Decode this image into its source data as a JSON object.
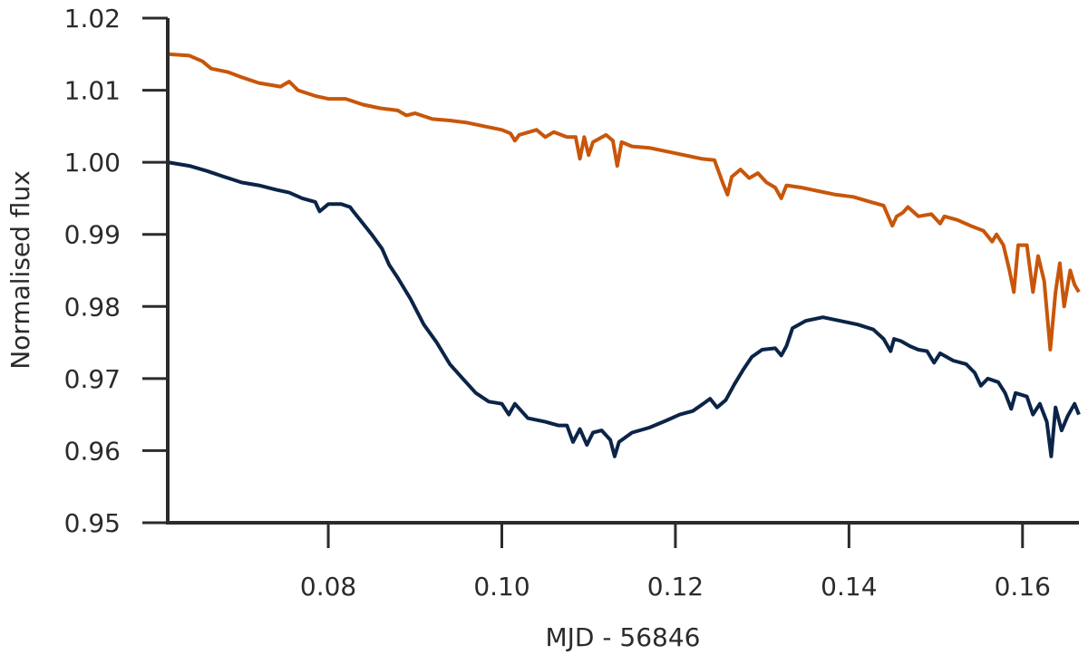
{
  "chart_data": {
    "type": "line",
    "title": "",
    "xlabel": "MJD - 56846",
    "ylabel": "Normalised flux",
    "xlim": [
      0.0615,
      0.1665
    ],
    "ylim": [
      0.95,
      1.02
    ],
    "xticks": [
      "0.08",
      "0.10",
      "0.12",
      "0.14",
      "0.16"
    ],
    "yticks": [
      "0.95",
      "0.96",
      "0.97",
      "0.98",
      "0.99",
      "1.00",
      "1.01",
      "1.02"
    ],
    "grid": false,
    "legend": "none",
    "series": [
      {
        "color": "#c8560a",
        "points": [
          [
            0.0615,
            1.015
          ],
          [
            0.064,
            1.0148
          ],
          [
            0.0655,
            1.014
          ],
          [
            0.0665,
            1.013
          ],
          [
            0.0685,
            1.0125
          ],
          [
            0.07,
            1.0118
          ],
          [
            0.072,
            1.011
          ],
          [
            0.0745,
            1.0105
          ],
          [
            0.0755,
            1.0112
          ],
          [
            0.0765,
            1.01
          ],
          [
            0.0785,
            1.0092
          ],
          [
            0.08,
            1.0088
          ],
          [
            0.082,
            1.0088
          ],
          [
            0.084,
            1.008
          ],
          [
            0.086,
            1.0075
          ],
          [
            0.088,
            1.0072
          ],
          [
            0.089,
            1.0065
          ],
          [
            0.09,
            1.0068
          ],
          [
            0.092,
            1.006
          ],
          [
            0.094,
            1.0058
          ],
          [
            0.096,
            1.0055
          ],
          [
            0.098,
            1.005
          ],
          [
            0.1,
            1.0045
          ],
          [
            0.101,
            1.004
          ],
          [
            0.1015,
            1.003
          ],
          [
            0.102,
            1.0038
          ],
          [
            0.104,
            1.0045
          ],
          [
            0.105,
            1.0035
          ],
          [
            0.106,
            1.0042
          ],
          [
            0.1075,
            1.0035
          ],
          [
            0.1085,
            1.0035
          ],
          [
            0.109,
            1.0005
          ],
          [
            0.1095,
            1.0035
          ],
          [
            0.11,
            1.001
          ],
          [
            0.1105,
            1.0028
          ],
          [
            0.112,
            1.0038
          ],
          [
            0.1128,
            1.003
          ],
          [
            0.1133,
            0.9995
          ],
          [
            0.1138,
            1.0028
          ],
          [
            0.115,
            1.0022
          ],
          [
            0.117,
            1.002
          ],
          [
            0.119,
            1.0015
          ],
          [
            0.121,
            1.001
          ],
          [
            0.123,
            1.0005
          ],
          [
            0.1245,
            1.0003
          ],
          [
            0.1255,
            0.997
          ],
          [
            0.126,
            0.9955
          ],
          [
            0.1265,
            0.998
          ],
          [
            0.1275,
            0.999
          ],
          [
            0.1285,
            0.9978
          ],
          [
            0.1295,
            0.9985
          ],
          [
            0.1305,
            0.9972
          ],
          [
            0.1315,
            0.9965
          ],
          [
            0.1322,
            0.995
          ],
          [
            0.1328,
            0.9968
          ],
          [
            0.1345,
            0.9965
          ],
          [
            0.1365,
            0.996
          ],
          [
            0.1385,
            0.9955
          ],
          [
            0.1405,
            0.9952
          ],
          [
            0.1425,
            0.9945
          ],
          [
            0.144,
            0.994
          ],
          [
            0.145,
            0.9912
          ],
          [
            0.1455,
            0.9925
          ],
          [
            0.1462,
            0.993
          ],
          [
            0.1468,
            0.9938
          ],
          [
            0.148,
            0.9925
          ],
          [
            0.1495,
            0.9928
          ],
          [
            0.1505,
            0.9915
          ],
          [
            0.151,
            0.9925
          ],
          [
            0.1525,
            0.992
          ],
          [
            0.154,
            0.9912
          ],
          [
            0.1555,
            0.9905
          ],
          [
            0.1565,
            0.989
          ],
          [
            0.157,
            0.99
          ],
          [
            0.1578,
            0.9885
          ],
          [
            0.1585,
            0.985
          ],
          [
            0.159,
            0.982
          ],
          [
            0.1595,
            0.9885
          ],
          [
            0.1605,
            0.9885
          ],
          [
            0.1612,
            0.982
          ],
          [
            0.1618,
            0.987
          ],
          [
            0.1625,
            0.9835
          ],
          [
            0.1632,
            0.974
          ],
          [
            0.1638,
            0.982
          ],
          [
            0.1643,
            0.986
          ],
          [
            0.1648,
            0.98
          ],
          [
            0.1655,
            0.985
          ],
          [
            0.166,
            0.983
          ],
          [
            0.1665,
            0.982
          ]
        ]
      },
      {
        "color": "#0b2447",
        "points": [
          [
            0.0615,
            1.0
          ],
          [
            0.064,
            0.9995
          ],
          [
            0.066,
            0.9988
          ],
          [
            0.068,
            0.998
          ],
          [
            0.07,
            0.9972
          ],
          [
            0.072,
            0.9968
          ],
          [
            0.074,
            0.9962
          ],
          [
            0.0755,
            0.9958
          ],
          [
            0.077,
            0.995
          ],
          [
            0.0785,
            0.9945
          ],
          [
            0.079,
            0.9932
          ],
          [
            0.08,
            0.9942
          ],
          [
            0.0815,
            0.9942
          ],
          [
            0.0825,
            0.9938
          ],
          [
            0.083,
            0.993
          ],
          [
            0.084,
            0.9915
          ],
          [
            0.085,
            0.99
          ],
          [
            0.0862,
            0.988
          ],
          [
            0.087,
            0.9858
          ],
          [
            0.088,
            0.984
          ],
          [
            0.0895,
            0.981
          ],
          [
            0.091,
            0.9775
          ],
          [
            0.0925,
            0.975
          ],
          [
            0.094,
            0.972
          ],
          [
            0.0955,
            0.97
          ],
          [
            0.097,
            0.968
          ],
          [
            0.0985,
            0.9668
          ],
          [
            0.1,
            0.9665
          ],
          [
            0.1008,
            0.965
          ],
          [
            0.1015,
            0.9665
          ],
          [
            0.103,
            0.9645
          ],
          [
            0.105,
            0.964
          ],
          [
            0.1065,
            0.9635
          ],
          [
            0.1075,
            0.9635
          ],
          [
            0.1082,
            0.9612
          ],
          [
            0.109,
            0.963
          ],
          [
            0.1098,
            0.9608
          ],
          [
            0.1105,
            0.9625
          ],
          [
            0.1115,
            0.9628
          ],
          [
            0.1125,
            0.9615
          ],
          [
            0.113,
            0.9592
          ],
          [
            0.1135,
            0.9612
          ],
          [
            0.115,
            0.9625
          ],
          [
            0.117,
            0.9632
          ],
          [
            0.119,
            0.9642
          ],
          [
            0.1205,
            0.965
          ],
          [
            0.122,
            0.9655
          ],
          [
            0.1232,
            0.9665
          ],
          [
            0.124,
            0.9672
          ],
          [
            0.1248,
            0.966
          ],
          [
            0.1258,
            0.967
          ],
          [
            0.1268,
            0.9692
          ],
          [
            0.1278,
            0.9712
          ],
          [
            0.1288,
            0.973
          ],
          [
            0.13,
            0.974
          ],
          [
            0.1315,
            0.9742
          ],
          [
            0.1322,
            0.9732
          ],
          [
            0.1328,
            0.9745
          ],
          [
            0.1335,
            0.977
          ],
          [
            0.135,
            0.978
          ],
          [
            0.137,
            0.9785
          ],
          [
            0.139,
            0.978
          ],
          [
            0.141,
            0.9775
          ],
          [
            0.1428,
            0.9768
          ],
          [
            0.144,
            0.9755
          ],
          [
            0.1448,
            0.9738
          ],
          [
            0.1452,
            0.9755
          ],
          [
            0.146,
            0.9752
          ],
          [
            0.147,
            0.9745
          ],
          [
            0.148,
            0.974
          ],
          [
            0.149,
            0.9738
          ],
          [
            0.1498,
            0.9722
          ],
          [
            0.1505,
            0.9735
          ],
          [
            0.152,
            0.9725
          ],
          [
            0.1535,
            0.972
          ],
          [
            0.1545,
            0.9708
          ],
          [
            0.1552,
            0.969
          ],
          [
            0.156,
            0.97
          ],
          [
            0.1572,
            0.9695
          ],
          [
            0.158,
            0.968
          ],
          [
            0.1587,
            0.9658
          ],
          [
            0.1592,
            0.968
          ],
          [
            0.1605,
            0.9675
          ],
          [
            0.1612,
            0.965
          ],
          [
            0.162,
            0.9665
          ],
          [
            0.1628,
            0.964
          ],
          [
            0.1633,
            0.9592
          ],
          [
            0.1638,
            0.966
          ],
          [
            0.1645,
            0.9628
          ],
          [
            0.1652,
            0.9648
          ],
          [
            0.166,
            0.9665
          ],
          [
            0.1665,
            0.965
          ]
        ]
      }
    ]
  }
}
